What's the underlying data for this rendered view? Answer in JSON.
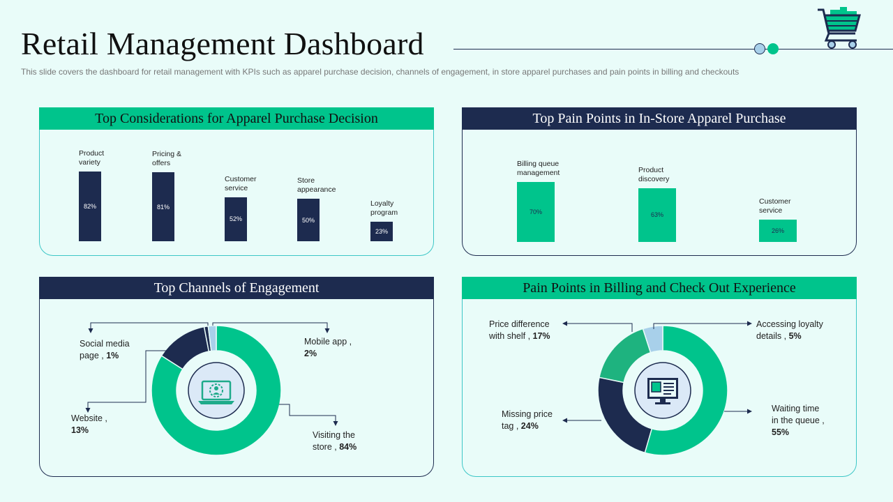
{
  "page": {
    "title": "Retail Management Dashboard",
    "subtitle": "This slide covers the dashboard for retail management with KPIs such as apparel purchase decision, channels of engagement, in store apparel purchases and pain points in billing and checkouts"
  },
  "colors": {
    "navy": "#1d2b4f",
    "green": "#00c48c",
    "light_blue": "#a8d0ea",
    "background": "#e9fcf9"
  },
  "icons": {
    "header": "shopping-cart-icon",
    "engagement_center": "laptop-user-settings-icon",
    "billing_center": "monitor-checkout-icon"
  },
  "chart_data": [
    {
      "type": "bar",
      "title": "Top Considerations for Apparel Purchase Decision",
      "categories": [
        "Product variety",
        "Pricing & offers",
        "Customer service",
        "Store appearance",
        "Loyalty program"
      ],
      "category_labels": [
        [
          "Product",
          "variety"
        ],
        [
          "Pricing &",
          "offers"
        ],
        [
          "Customer",
          "service"
        ],
        [
          "Store",
          "appearance"
        ],
        [
          "Loyalty",
          "program"
        ]
      ],
      "values": [
        82,
        81,
        52,
        50,
        23
      ],
      "value_labels": [
        "82%",
        "81%",
        "52%",
        "50%",
        "23%"
      ],
      "color": "#1d2b4f"
    },
    {
      "type": "bar",
      "title": "Top Pain Points in In-Store Apparel Purchase",
      "categories": [
        "Billing queue management",
        "Product discovery",
        "Customer service"
      ],
      "category_labels": [
        [
          "Billing queue",
          "management"
        ],
        [
          "Product",
          "discovery"
        ],
        [
          "Customer",
          "service"
        ]
      ],
      "values": [
        70,
        63,
        26
      ],
      "value_labels": [
        "70%",
        "63%",
        "26%"
      ],
      "color": "#00c48c"
    },
    {
      "type": "pie",
      "title": "Top Channels of Engagement",
      "slices": [
        {
          "label": "Visiting the store",
          "value": 84,
          "display": [
            "Visiting the",
            "store , "
          ],
          "value_text": "84%",
          "color": "#00c48c"
        },
        {
          "label": "Website",
          "value": 13,
          "display": [
            "Website ,",
            ""
          ],
          "value_text": "13%",
          "color": "#1d2b4f"
        },
        {
          "label": "Social media page",
          "value": 1,
          "display": [
            "Social media",
            "page  , "
          ],
          "value_text": "1%",
          "color": "#1d2b4f"
        },
        {
          "label": "Mobile app",
          "value": 2,
          "display": [
            "Mobile app ,",
            ""
          ],
          "value_text": "2%",
          "color": "#a8d0ea"
        }
      ]
    },
    {
      "type": "pie",
      "title": "Pain Points in Billing and Check Out Experience",
      "slices": [
        {
          "label": "Waiting time in the queue",
          "value": 55,
          "display": [
            "Waiting time",
            "in the queue ,",
            ""
          ],
          "value_text": "55%",
          "color": "#00c48c"
        },
        {
          "label": "Missing price tag",
          "value": 24,
          "display": [
            "Missing price",
            "tag , "
          ],
          "value_text": "24%",
          "color": "#1d2b4f"
        },
        {
          "label": "Price difference with shelf",
          "value": 17,
          "display": [
            "Price difference",
            "with shelf , "
          ],
          "value_text": "17%",
          "color": "#1eb37f"
        },
        {
          "label": "Accessing loyalty details",
          "value": 5,
          "display": [
            "Accessing loyalty",
            "details , "
          ],
          "value_text": "5%",
          "color": "#a8d0ea"
        }
      ]
    }
  ]
}
